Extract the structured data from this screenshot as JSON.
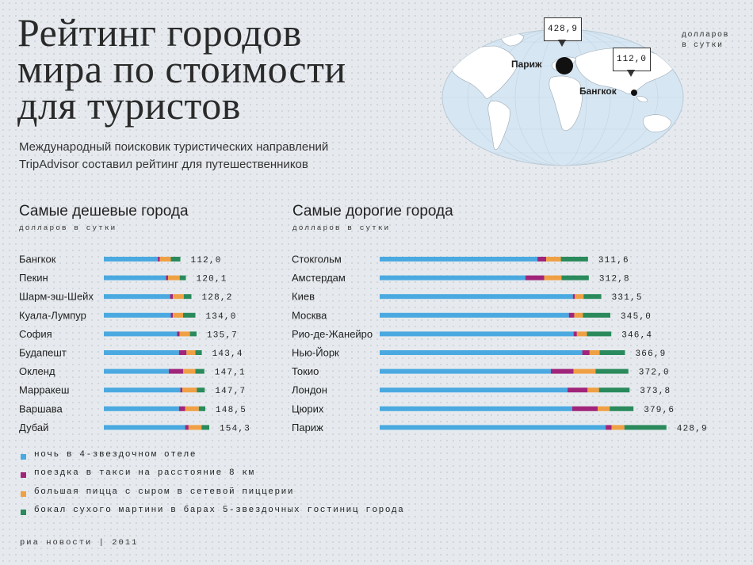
{
  "header": {
    "title_lines": [
      "Рейтинг городов",
      "мира по стоимости",
      "для туристов"
    ],
    "subtitle_lines": [
      "Международный поисковик туристических направлений",
      "TripAdvisor составил рейтинг для путешественников"
    ]
  },
  "map": {
    "unit_lines": [
      "долларов",
      "в сутки"
    ],
    "callouts": [
      {
        "city": "Париж",
        "value": "428,9"
      },
      {
        "city": "Бангкок",
        "value": "112,0"
      }
    ]
  },
  "legend": [
    {
      "label": "ночь в 4-звездочном отеле",
      "color": "#4aa9e0"
    },
    {
      "label": "поездка в такси на расстояние 8 км",
      "color": "#a0257a"
    },
    {
      "label": "большая пицца с сыром в сетевой пиццерии",
      "color": "#f0a044"
    },
    {
      "label": "бокал сухого мартини в барах 5-звездочных гостиниц города",
      "color": "#2a8a5c"
    }
  ],
  "footer": {
    "credit": "риа новости  |  2011"
  },
  "chart_data": [
    {
      "type": "bar",
      "stacked": true,
      "orientation": "horizontal",
      "title": "Самые дешевые города",
      "unit": "долларов в сутки",
      "categories": [
        "Бангкок",
        "Пекин",
        "Шарм-эш-Шейх",
        "Куала-Лумпур",
        "София",
        "Будапешт",
        "Окленд",
        "Марракеш",
        "Варшава",
        "Дубай"
      ],
      "totals": [
        "112,0",
        "120,1",
        "128,2",
        "134,0",
        "135,7",
        "143,4",
        "147,1",
        "147,7",
        "148,5",
        "154,3"
      ],
      "series": [
        {
          "values": [
            79.0,
            91.0,
            97.0,
            98.0,
            107.0,
            110.0,
            95.0,
            112.0,
            110.0,
            119.0
          ]
        },
        {
          "values": [
            3.0,
            3.0,
            4.0,
            3.0,
            4.0,
            11.0,
            21.0,
            3.0,
            9.0,
            5.0
          ]
        },
        {
          "values": [
            16.0,
            17.0,
            16.0,
            15.0,
            15.0,
            13.0,
            18.0,
            21.0,
            20.0,
            19.0
          ]
        },
        {
          "values": [
            14.0,
            9.1,
            11.2,
            18.0,
            9.7,
            9.4,
            13.1,
            11.7,
            9.5,
            11.3
          ]
        }
      ],
      "xlim": [
        0,
        180
      ]
    },
    {
      "type": "bar",
      "stacked": true,
      "orientation": "horizontal",
      "title": "Самые дорогие  города",
      "unit": "долларов в сутки",
      "categories": [
        "Стокгольм",
        "Амстердам",
        "Киев",
        "Москва",
        "Рио-де-Жанейро",
        "Нью-Йорк",
        "Токио",
        "Лондон",
        "Цюрих",
        "Париж"
      ],
      "totals": [
        "311,6",
        "312,8",
        "331,5",
        "345,0",
        "346,4",
        "366,9",
        "372,0",
        "373,8",
        "379,6",
        "428,9"
      ],
      "series": [
        {
          "values": [
            236.0,
            218.0,
            289.0,
            283.0,
            290.0,
            303.0,
            256.0,
            281.0,
            288.0,
            338.0
          ]
        },
        {
          "values": [
            13.0,
            28.0,
            3.0,
            8.0,
            5.0,
            11.0,
            34.0,
            30.0,
            38.0,
            9.0
          ]
        },
        {
          "values": [
            22.0,
            26.0,
            13.0,
            13.0,
            15.0,
            15.0,
            33.0,
            17.0,
            18.0,
            19.0
          ]
        },
        {
          "values": [
            40.6,
            40.8,
            26.5,
            41.0,
            36.4,
            37.9,
            49.0,
            45.8,
            35.6,
            62.9
          ]
        }
      ],
      "xlim": [
        0,
        450
      ]
    }
  ]
}
